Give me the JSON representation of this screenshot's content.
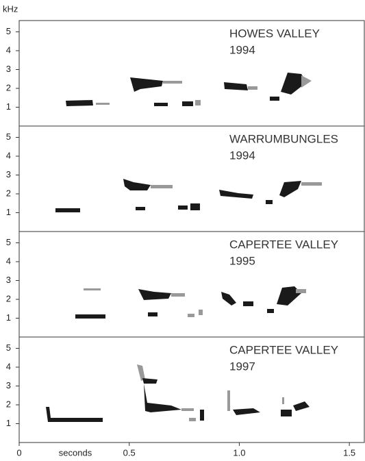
{
  "chart_data": [
    {
      "type": "spectrogram",
      "title": "HOWES VALLEY",
      "subtitle": "1994",
      "ylabel": "kHz",
      "ylim": [
        0,
        5.6
      ],
      "yticks": [
        1,
        2,
        3,
        4,
        5
      ]
    },
    {
      "type": "spectrogram",
      "title": "WARRUMBUNGLES",
      "subtitle": "1994",
      "ylim": [
        0,
        5.6
      ],
      "yticks": [
        1,
        2,
        3,
        4,
        5
      ]
    },
    {
      "type": "spectrogram",
      "title": "CAPERTEE VALLEY",
      "subtitle": "1995",
      "ylim": [
        0,
        5.6
      ],
      "yticks": [
        1,
        2,
        3,
        4,
        5
      ]
    },
    {
      "type": "spectrogram",
      "title": "CAPERTEE VALLEY",
      "subtitle": "1997",
      "xlabel": "seconds",
      "ylim": [
        0,
        5.6
      ],
      "yticks": [
        1,
        2,
        3,
        4,
        5
      ],
      "xlim": [
        0,
        1.568
      ],
      "xticks": [
        0,
        0.5,
        {
          "value": 1,
          "label": "1.0"
        },
        1.5
      ]
    }
  ]
}
